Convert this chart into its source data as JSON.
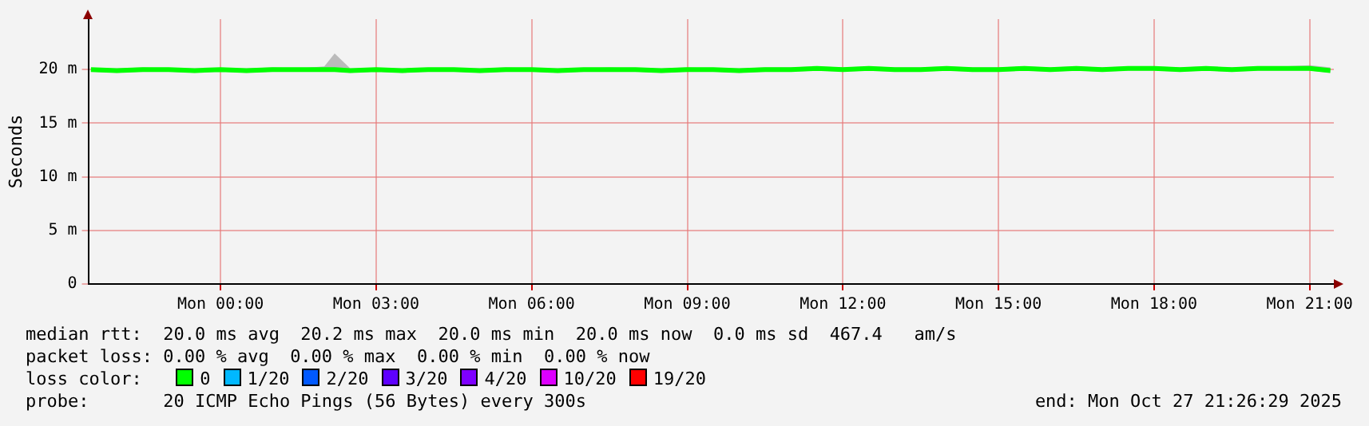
{
  "chart_data": {
    "type": "line",
    "ylabel": "Seconds",
    "legend_title": "loss color:",
    "legend": "bottom",
    "grid": true,
    "marker": "none",
    "line_style": "solid",
    "x": [
      "2025-10-26T21:30",
      "2025-10-26T22:00",
      "2025-10-26T22:30",
      "2025-10-26T23:00",
      "2025-10-26T23:30",
      "2025-10-27T00:00",
      "2025-10-27T00:30",
      "2025-10-27T01:00",
      "2025-10-27T01:30",
      "2025-10-27T02:00",
      "2025-10-27T02:12",
      "2025-10-27T02:30",
      "2025-10-27T03:00",
      "2025-10-27T03:30",
      "2025-10-27T04:00",
      "2025-10-27T04:30",
      "2025-10-27T05:00",
      "2025-10-27T05:30",
      "2025-10-27T06:00",
      "2025-10-27T06:30",
      "2025-10-27T07:00",
      "2025-10-27T07:30",
      "2025-10-27T08:00",
      "2025-10-27T08:30",
      "2025-10-27T09:00",
      "2025-10-27T09:30",
      "2025-10-27T10:00",
      "2025-10-27T10:30",
      "2025-10-27T11:00",
      "2025-10-27T11:30",
      "2025-10-27T12:00",
      "2025-10-27T12:30",
      "2025-10-27T13:00",
      "2025-10-27T13:30",
      "2025-10-27T14:00",
      "2025-10-27T14:30",
      "2025-10-27T15:00",
      "2025-10-27T15:30",
      "2025-10-27T16:00",
      "2025-10-27T16:30",
      "2025-10-27T17:00",
      "2025-10-27T17:30",
      "2025-10-27T18:00",
      "2025-10-27T18:30",
      "2025-10-27T19:00",
      "2025-10-27T19:30",
      "2025-10-27T20:00",
      "2025-10-27T20:30",
      "2025-10-27T21:00",
      "2025-10-27T21:24"
    ],
    "xlim": [
      "2025-10-26T21:27",
      "2025-10-27T21:28"
    ],
    "xticks": [
      {
        "value": "2025-10-27T00:00",
        "label": "Mon 00:00"
      },
      {
        "value": "2025-10-27T03:00",
        "label": "Mon 03:00"
      },
      {
        "value": "2025-10-27T06:00",
        "label": "Mon 06:00"
      },
      {
        "value": "2025-10-27T09:00",
        "label": "Mon 09:00"
      },
      {
        "value": "2025-10-27T12:00",
        "label": "Mon 12:00"
      },
      {
        "value": "2025-10-27T15:00",
        "label": "Mon 15:00"
      },
      {
        "value": "2025-10-27T18:00",
        "label": "Mon 18:00"
      },
      {
        "value": "2025-10-27T21:00",
        "label": "Mon 21:00"
      }
    ],
    "ylim": [
      0,
      24.7
    ],
    "yticks": [
      0,
      {
        "value": 5,
        "label": "5 m"
      },
      {
        "value": 10,
        "label": "10 m"
      },
      {
        "value": 15,
        "label": "15 m"
      },
      {
        "value": 20,
        "label": "20 m"
      }
    ],
    "series": [
      {
        "name": "0",
        "color": "#00ff00",
        "values": [
          20,
          19.9,
          20,
          20,
          19.9,
          20,
          19.9,
          20,
          20,
          20,
          20,
          19.9,
          20,
          19.9,
          20,
          20,
          19.9,
          20,
          20,
          19.9,
          20,
          20,
          20,
          19.9,
          20,
          20,
          19.9,
          20,
          20,
          20.1,
          20,
          20.1,
          20,
          20,
          20.1,
          20,
          20,
          20.1,
          20,
          20.1,
          20,
          20.1,
          20.1,
          20,
          20.1,
          20,
          20.1,
          20.1,
          20.1,
          19.9
        ],
        "lower": [
          19.8,
          19.7,
          19.8,
          19.8,
          19.7,
          19.8,
          19.7,
          19.8,
          19.8,
          19.8,
          19.8,
          19.7,
          19.8,
          19.7,
          19.8,
          19.8,
          19.7,
          19.8,
          19.8,
          19.7,
          19.8,
          19.8,
          19.8,
          19.7,
          19.8,
          19.8,
          19.7,
          19.8,
          19.8,
          19.9,
          19.8,
          19.9,
          19.8,
          19.8,
          19.9,
          19.8,
          19.8,
          19.9,
          19.8,
          19.9,
          19.8,
          19.9,
          19.9,
          19.8,
          19.9,
          19.8,
          19.9,
          19.9,
          19.9,
          19.7
        ],
        "upper": [
          20.1,
          20.1,
          20.2,
          20.1,
          20.1,
          20.1,
          20.1,
          20.2,
          20.1,
          20.3,
          21.5,
          20.1,
          20.1,
          20.1,
          20.1,
          20.1,
          20.1,
          20.2,
          20.1,
          20.1,
          20.1,
          20.2,
          20.1,
          20.1,
          20.2,
          20.1,
          20.1,
          20.2,
          20.2,
          20.3,
          20.2,
          20.3,
          20.2,
          20.2,
          20.3,
          20.2,
          20.2,
          20.3,
          20.2,
          20.3,
          20.2,
          20.3,
          20.3,
          20.2,
          20.3,
          20.2,
          20.3,
          20.3,
          20.4,
          20.2
        ]
      },
      {
        "name": "1/20",
        "color": "#00b8ff",
        "values": [
          null,
          null,
          null,
          null,
          null,
          null,
          null,
          null,
          null,
          null,
          null,
          null,
          null,
          null,
          null,
          null,
          null,
          null,
          null,
          null,
          null,
          null,
          null,
          null,
          null,
          null,
          null,
          null,
          null,
          null,
          null,
          null,
          null,
          null,
          null,
          null,
          null,
          null,
          null,
          null,
          null,
          null,
          null,
          null,
          null,
          null,
          null,
          null,
          null,
          null
        ]
      },
      {
        "name": "2/20",
        "color": "#0059ff",
        "values": [
          null,
          null,
          null,
          null,
          null,
          null,
          null,
          null,
          null,
          null,
          null,
          null,
          null,
          null,
          null,
          null,
          null,
          null,
          null,
          null,
          null,
          null,
          null,
          null,
          null,
          null,
          null,
          null,
          null,
          null,
          null,
          null,
          null,
          null,
          null,
          null,
          null,
          null,
          null,
          null,
          null,
          null,
          null,
          null,
          null,
          null,
          null,
          null,
          null,
          null
        ]
      },
      {
        "name": "3/20",
        "color": "#5e00ff",
        "values": [
          null,
          null,
          null,
          null,
          null,
          null,
          null,
          null,
          null,
          null,
          null,
          null,
          null,
          null,
          null,
          null,
          null,
          null,
          null,
          null,
          null,
          null,
          null,
          null,
          null,
          null,
          null,
          null,
          null,
          null,
          null,
          null,
          null,
          null,
          null,
          null,
          null,
          null,
          null,
          null,
          null,
          null,
          null,
          null,
          null,
          null,
          null,
          null,
          null,
          null
        ]
      },
      {
        "name": "4/20",
        "color": "#7e00ff",
        "values": [
          null,
          null,
          null,
          null,
          null,
          null,
          null,
          null,
          null,
          null,
          null,
          null,
          null,
          null,
          null,
          null,
          null,
          null,
          null,
          null,
          null,
          null,
          null,
          null,
          null,
          null,
          null,
          null,
          null,
          null,
          null,
          null,
          null,
          null,
          null,
          null,
          null,
          null,
          null,
          null,
          null,
          null,
          null,
          null,
          null,
          null,
          null,
          null,
          null,
          null
        ]
      },
      {
        "name": "10/20",
        "color": "#dd00ff",
        "values": [
          null,
          null,
          null,
          null,
          null,
          null,
          null,
          null,
          null,
          null,
          null,
          null,
          null,
          null,
          null,
          null,
          null,
          null,
          null,
          null,
          null,
          null,
          null,
          null,
          null,
          null,
          null,
          null,
          null,
          null,
          null,
          null,
          null,
          null,
          null,
          null,
          null,
          null,
          null,
          null,
          null,
          null,
          null,
          null,
          null,
          null,
          null,
          null,
          null,
          null
        ]
      },
      {
        "name": "19/20",
        "color": "#ff0000",
        "values": [
          null,
          null,
          null,
          null,
          null,
          null,
          null,
          null,
          null,
          null,
          null,
          null,
          null,
          null,
          null,
          null,
          null,
          null,
          null,
          null,
          null,
          null,
          null,
          null,
          null,
          null,
          null,
          null,
          null,
          null,
          null,
          null,
          null,
          null,
          null,
          null,
          null,
          null,
          null,
          null,
          null,
          null,
          null,
          null,
          null,
          null,
          null,
          null,
          null,
          null
        ]
      }
    ],
    "annotations": [
      "median rtt:  20.0 ms avg  20.2 ms max  20.0 ms min  20.0 ms now  0.0 ms sd  467.4   am/s",
      "packet loss: 0.00 % avg  0.00 % max  0.00 % min  0.00 % now",
      "probe:       20 ICMP Echo Pings (56 Bytes) every 300s",
      "end: Mon Oct 27 21:26:29 2025"
    ]
  }
}
